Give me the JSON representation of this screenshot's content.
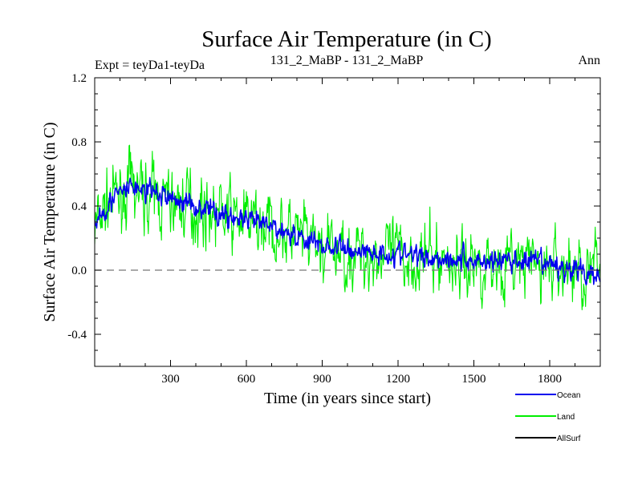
{
  "chart_data": {
    "type": "line",
    "title": "Surface Air Temperature (in C)",
    "subtitle_left": "Expt = teyDa1-teyDa",
    "subtitle_center": "131_2_MaBP - 131_2_MaBP",
    "subtitle_right": "Ann",
    "xlabel": "Time (in years since start)",
    "ylabel": "Surface Air Temperature (in C)",
    "xlim": [
      0,
      2000
    ],
    "ylim": [
      -0.6,
      1.2
    ],
    "x_ticks": [
      300,
      600,
      900,
      1200,
      1500,
      1800
    ],
    "x_tick_labels": [
      "300",
      "600",
      "900",
      "1200",
      "1500",
      "1800"
    ],
    "y_ticks": [
      -0.4,
      0.0,
      0.4,
      0.8,
      1.2
    ],
    "y_tick_labels": [
      "-0.4",
      "0.0",
      "0.4",
      "0.8",
      "1.2"
    ],
    "reference_line": {
      "y": 0.0,
      "style": "dashed"
    },
    "legend_position": "bottom-right",
    "series": [
      {
        "name": "Land",
        "color": "#00ee00",
        "noise_amplitude": 0.2,
        "trend": [
          [
            0,
            0.25
          ],
          [
            50,
            0.42
          ],
          [
            150,
            0.5
          ],
          [
            300,
            0.42
          ],
          [
            450,
            0.38
          ],
          [
            600,
            0.3
          ],
          [
            750,
            0.25
          ],
          [
            900,
            0.12
          ],
          [
            1050,
            0.1
          ],
          [
            1200,
            0.09
          ],
          [
            1350,
            0.07
          ],
          [
            1500,
            0.04
          ],
          [
            1650,
            0.04
          ],
          [
            1800,
            0.02
          ],
          [
            2000,
            -0.02
          ]
        ]
      },
      {
        "name": "Ocean",
        "color": "#0000ee",
        "noise_amplitude": 0.07,
        "trend": [
          [
            0,
            0.3
          ],
          [
            50,
            0.42
          ],
          [
            150,
            0.52
          ],
          [
            300,
            0.45
          ],
          [
            450,
            0.38
          ],
          [
            600,
            0.3
          ],
          [
            750,
            0.25
          ],
          [
            900,
            0.15
          ],
          [
            1050,
            0.12
          ],
          [
            1200,
            0.1
          ],
          [
            1350,
            0.08
          ],
          [
            1500,
            0.06
          ],
          [
            1650,
            0.06
          ],
          [
            1800,
            0.03
          ],
          [
            2000,
            -0.03
          ]
        ]
      },
      {
        "name": "AllSurf",
        "color": "#000000",
        "noise_amplitude": 0.0,
        "trend": []
      }
    ]
  }
}
